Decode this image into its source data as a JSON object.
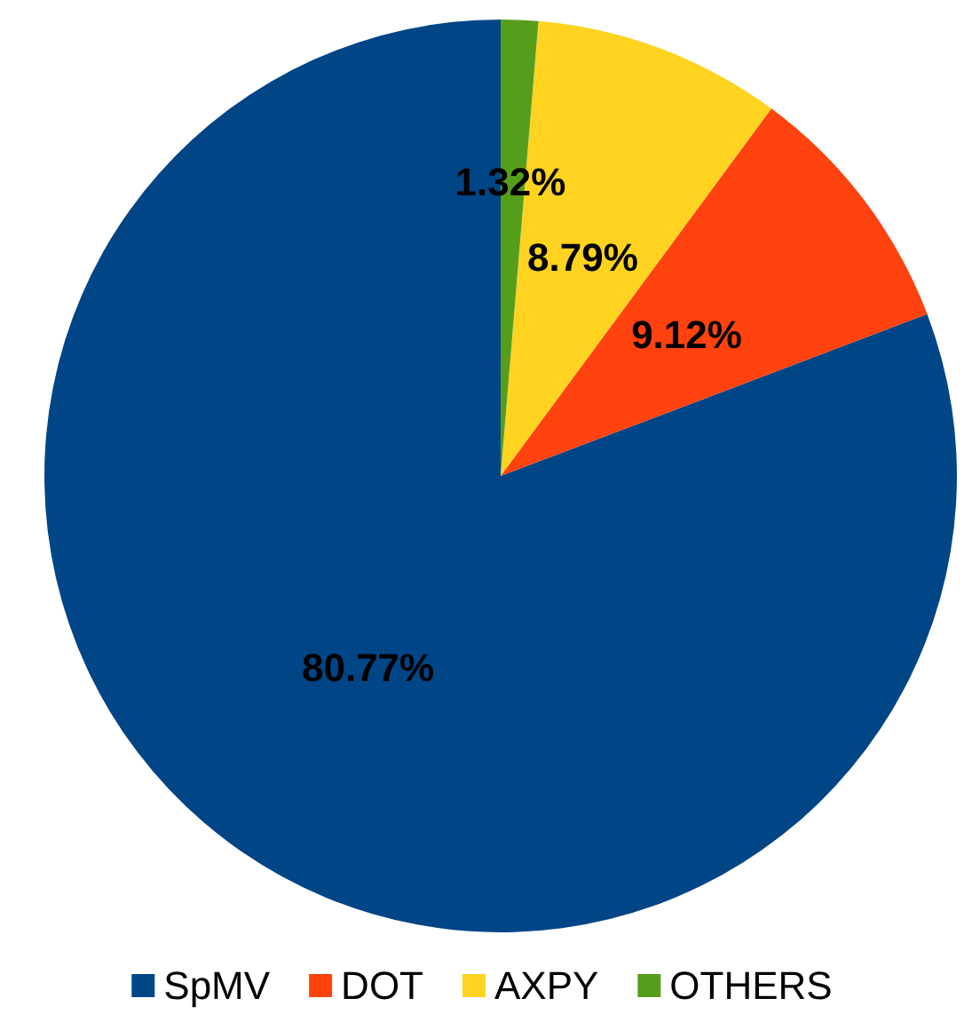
{
  "chart_data": {
    "type": "pie",
    "categories": [
      "SpMV",
      "DOT",
      "AXPY",
      "OTHERS"
    ],
    "values": [
      80.77,
      9.12,
      8.79,
      1.32
    ],
    "colors": [
      "#004586",
      "#ff420e",
      "#ffd320",
      "#579d1c"
    ],
    "value_labels": [
      "80.77%",
      "9.12%",
      "8.79%",
      "1.32%"
    ],
    "legend": "bottom"
  }
}
